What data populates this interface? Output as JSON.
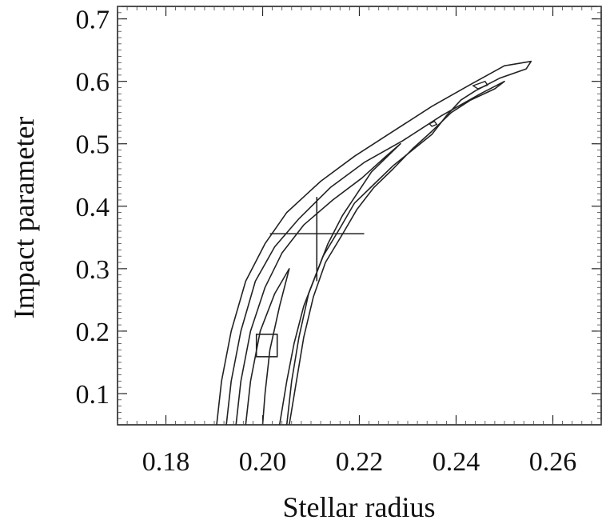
{
  "chart_data": {
    "type": "contour",
    "title": "",
    "xlabel": "Stellar radius",
    "ylabel": "Impact parameter",
    "xlim": [
      0.17,
      0.27
    ],
    "ylim": [
      0.05,
      0.72
    ],
    "x_ticks": [
      0.18,
      0.2,
      0.22,
      0.24,
      0.26
    ],
    "x_tick_labels": [
      "0.18",
      "0.20",
      "0.22",
      "0.24",
      "0.26"
    ],
    "y_ticks": [
      0.1,
      0.2,
      0.3,
      0.4,
      0.5,
      0.6,
      0.7
    ],
    "y_tick_labels": [
      "0.1",
      "0.2",
      "0.3",
      "0.4",
      "0.5",
      "0.6",
      "0.7"
    ],
    "grid": false,
    "legend": "none",
    "contour_color": "#222222",
    "contours": [
      {
        "level": 1,
        "points": [
          [
            0.1905,
            0.05
          ],
          [
            0.1915,
            0.12
          ],
          [
            0.1935,
            0.2
          ],
          [
            0.1965,
            0.28
          ],
          [
            0.2005,
            0.34
          ],
          [
            0.205,
            0.39
          ],
          [
            0.212,
            0.44
          ],
          [
            0.219,
            0.48
          ],
          [
            0.227,
            0.52
          ],
          [
            0.235,
            0.56
          ],
          [
            0.243,
            0.595
          ],
          [
            0.25,
            0.625
          ],
          [
            0.2555,
            0.632
          ],
          [
            0.2545,
            0.62
          ],
          [
            0.249,
            0.605
          ],
          [
            0.244,
            0.585
          ],
          [
            0.241,
            0.57
          ],
          [
            0.238,
            0.545
          ],
          [
            0.235,
            0.515
          ],
          [
            0.231,
            0.49
          ],
          [
            0.227,
            0.465
          ],
          [
            0.223,
            0.435
          ],
          [
            0.219,
            0.405
          ],
          [
            0.216,
            0.365
          ],
          [
            0.2125,
            0.32
          ],
          [
            0.2095,
            0.26
          ],
          [
            0.2075,
            0.19
          ],
          [
            0.206,
            0.12
          ],
          [
            0.205,
            0.05
          ]
        ]
      },
      {
        "level": 2,
        "points": [
          [
            0.1925,
            0.05
          ],
          [
            0.1935,
            0.12
          ],
          [
            0.1955,
            0.2
          ],
          [
            0.1985,
            0.28
          ],
          [
            0.2025,
            0.335
          ],
          [
            0.2075,
            0.38
          ],
          [
            0.214,
            0.43
          ],
          [
            0.221,
            0.47
          ],
          [
            0.229,
            0.505
          ],
          [
            0.237,
            0.545
          ],
          [
            0.245,
            0.58
          ],
          [
            0.25,
            0.6
          ],
          [
            0.248,
            0.588
          ],
          [
            0.243,
            0.57
          ],
          [
            0.239,
            0.55
          ],
          [
            0.235,
            0.52
          ],
          [
            0.231,
            0.492
          ],
          [
            0.227,
            0.46
          ],
          [
            0.223,
            0.43
          ],
          [
            0.2195,
            0.395
          ],
          [
            0.2165,
            0.355
          ],
          [
            0.213,
            0.31
          ],
          [
            0.2105,
            0.255
          ],
          [
            0.2085,
            0.19
          ],
          [
            0.207,
            0.12
          ],
          [
            0.2055,
            0.05
          ]
        ]
      },
      {
        "level": 3,
        "points": [
          [
            0.1945,
            0.05
          ],
          [
            0.1955,
            0.12
          ],
          [
            0.1975,
            0.2
          ],
          [
            0.2005,
            0.27
          ],
          [
            0.204,
            0.325
          ],
          [
            0.2085,
            0.37
          ],
          [
            0.2145,
            0.41
          ],
          [
            0.2205,
            0.445
          ],
          [
            0.2255,
            0.48
          ],
          [
            0.2285,
            0.5
          ],
          [
            0.2265,
            0.485
          ],
          [
            0.2225,
            0.455
          ],
          [
            0.2195,
            0.42
          ],
          [
            0.2165,
            0.385
          ],
          [
            0.2135,
            0.34
          ],
          [
            0.211,
            0.29
          ],
          [
            0.2085,
            0.24
          ],
          [
            0.2065,
            0.18
          ],
          [
            0.205,
            0.12
          ],
          [
            0.2035,
            0.05
          ]
        ]
      },
      {
        "level": 4,
        "points": [
          [
            0.1965,
            0.05
          ],
          [
            0.1975,
            0.12
          ],
          [
            0.1995,
            0.2
          ],
          [
            0.2025,
            0.26
          ],
          [
            0.2055,
            0.3
          ],
          [
            0.2035,
            0.24
          ],
          [
            0.2015,
            0.17
          ],
          [
            0.2005,
            0.1
          ],
          [
            0.2,
            0.05
          ]
        ]
      }
    ],
    "small_contours": [
      {
        "points": [
          [
            0.2435,
            0.593
          ],
          [
            0.246,
            0.6
          ],
          [
            0.2465,
            0.594
          ],
          [
            0.2445,
            0.588
          ],
          [
            0.2435,
            0.593
          ]
        ]
      },
      {
        "points": [
          [
            0.2345,
            0.532
          ],
          [
            0.2355,
            0.536
          ],
          [
            0.236,
            0.531
          ],
          [
            0.235,
            0.528
          ],
          [
            0.2345,
            0.532
          ]
        ]
      }
    ],
    "marker_square": {
      "x": 0.2007,
      "y": 0.177
    },
    "best_fit": {
      "x": 0.2112,
      "y": 0.356,
      "x_err": [
        0.2015,
        0.221
      ],
      "y_err": [
        0.28,
        0.415
      ]
    }
  }
}
